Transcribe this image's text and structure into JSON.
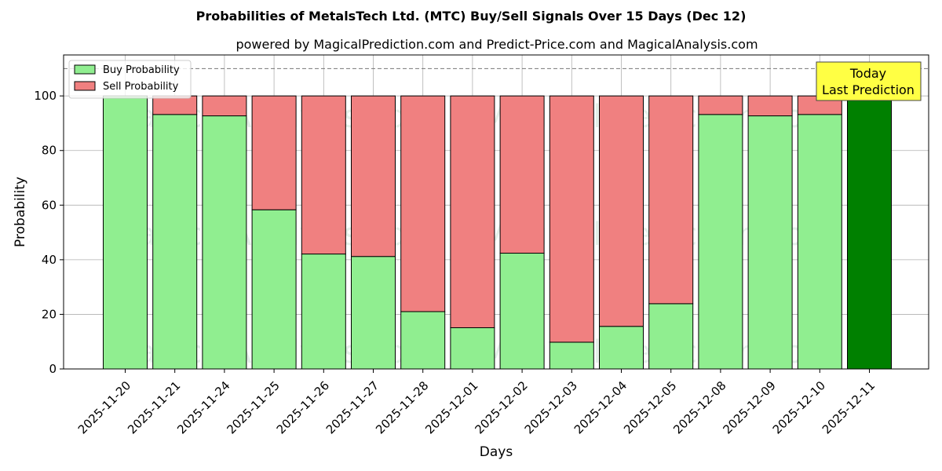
{
  "chart_data": {
    "type": "bar",
    "stacked": true,
    "title": "Probabilities of MetalsTech Ltd. (MTC) Buy/Sell Signals Over 15 Days (Dec 12)",
    "subtitle": "powered by MagicalPrediction.com and Predict-Price.com and MagicalAnalysis.com",
    "xlabel": "Days",
    "ylabel": "Probability",
    "ylim": [
      0,
      115
    ],
    "yticks": [
      0,
      20,
      40,
      60,
      80,
      100
    ],
    "grid": true,
    "legend_position": "top-left",
    "reference_line": 110,
    "categories": [
      "2025-11-20",
      "2025-11-21",
      "2025-11-24",
      "2025-11-25",
      "2025-11-26",
      "2025-11-27",
      "2025-11-28",
      "2025-12-01",
      "2025-12-02",
      "2025-12-03",
      "2025-12-04",
      "2025-12-05",
      "2025-12-08",
      "2025-12-09",
      "2025-12-10",
      "2025-12-11"
    ],
    "series": [
      {
        "name": "Buy Probability",
        "color": "#90ee90",
        "values": [
          100,
          93.2,
          92.7,
          58.3,
          42.1,
          41.2,
          21.0,
          15.1,
          42.4,
          9.8,
          15.6,
          23.9,
          93.2,
          92.7,
          93.2,
          100
        ]
      },
      {
        "name": "Sell Probability",
        "color": "#f08080",
        "values": [
          0,
          6.8,
          7.3,
          41.7,
          57.9,
          58.8,
          79.0,
          84.9,
          57.6,
          90.2,
          84.4,
          76.1,
          6.8,
          7.3,
          6.8,
          0
        ]
      }
    ],
    "highlight": {
      "index": 15,
      "color": "#008000"
    },
    "annotation": {
      "line1": "Today",
      "line2": "Last Prediction",
      "background": "#ffff44"
    },
    "watermarks": [
      "MagicalAnalysis.com",
      "MagicalPrediction.com"
    ]
  }
}
